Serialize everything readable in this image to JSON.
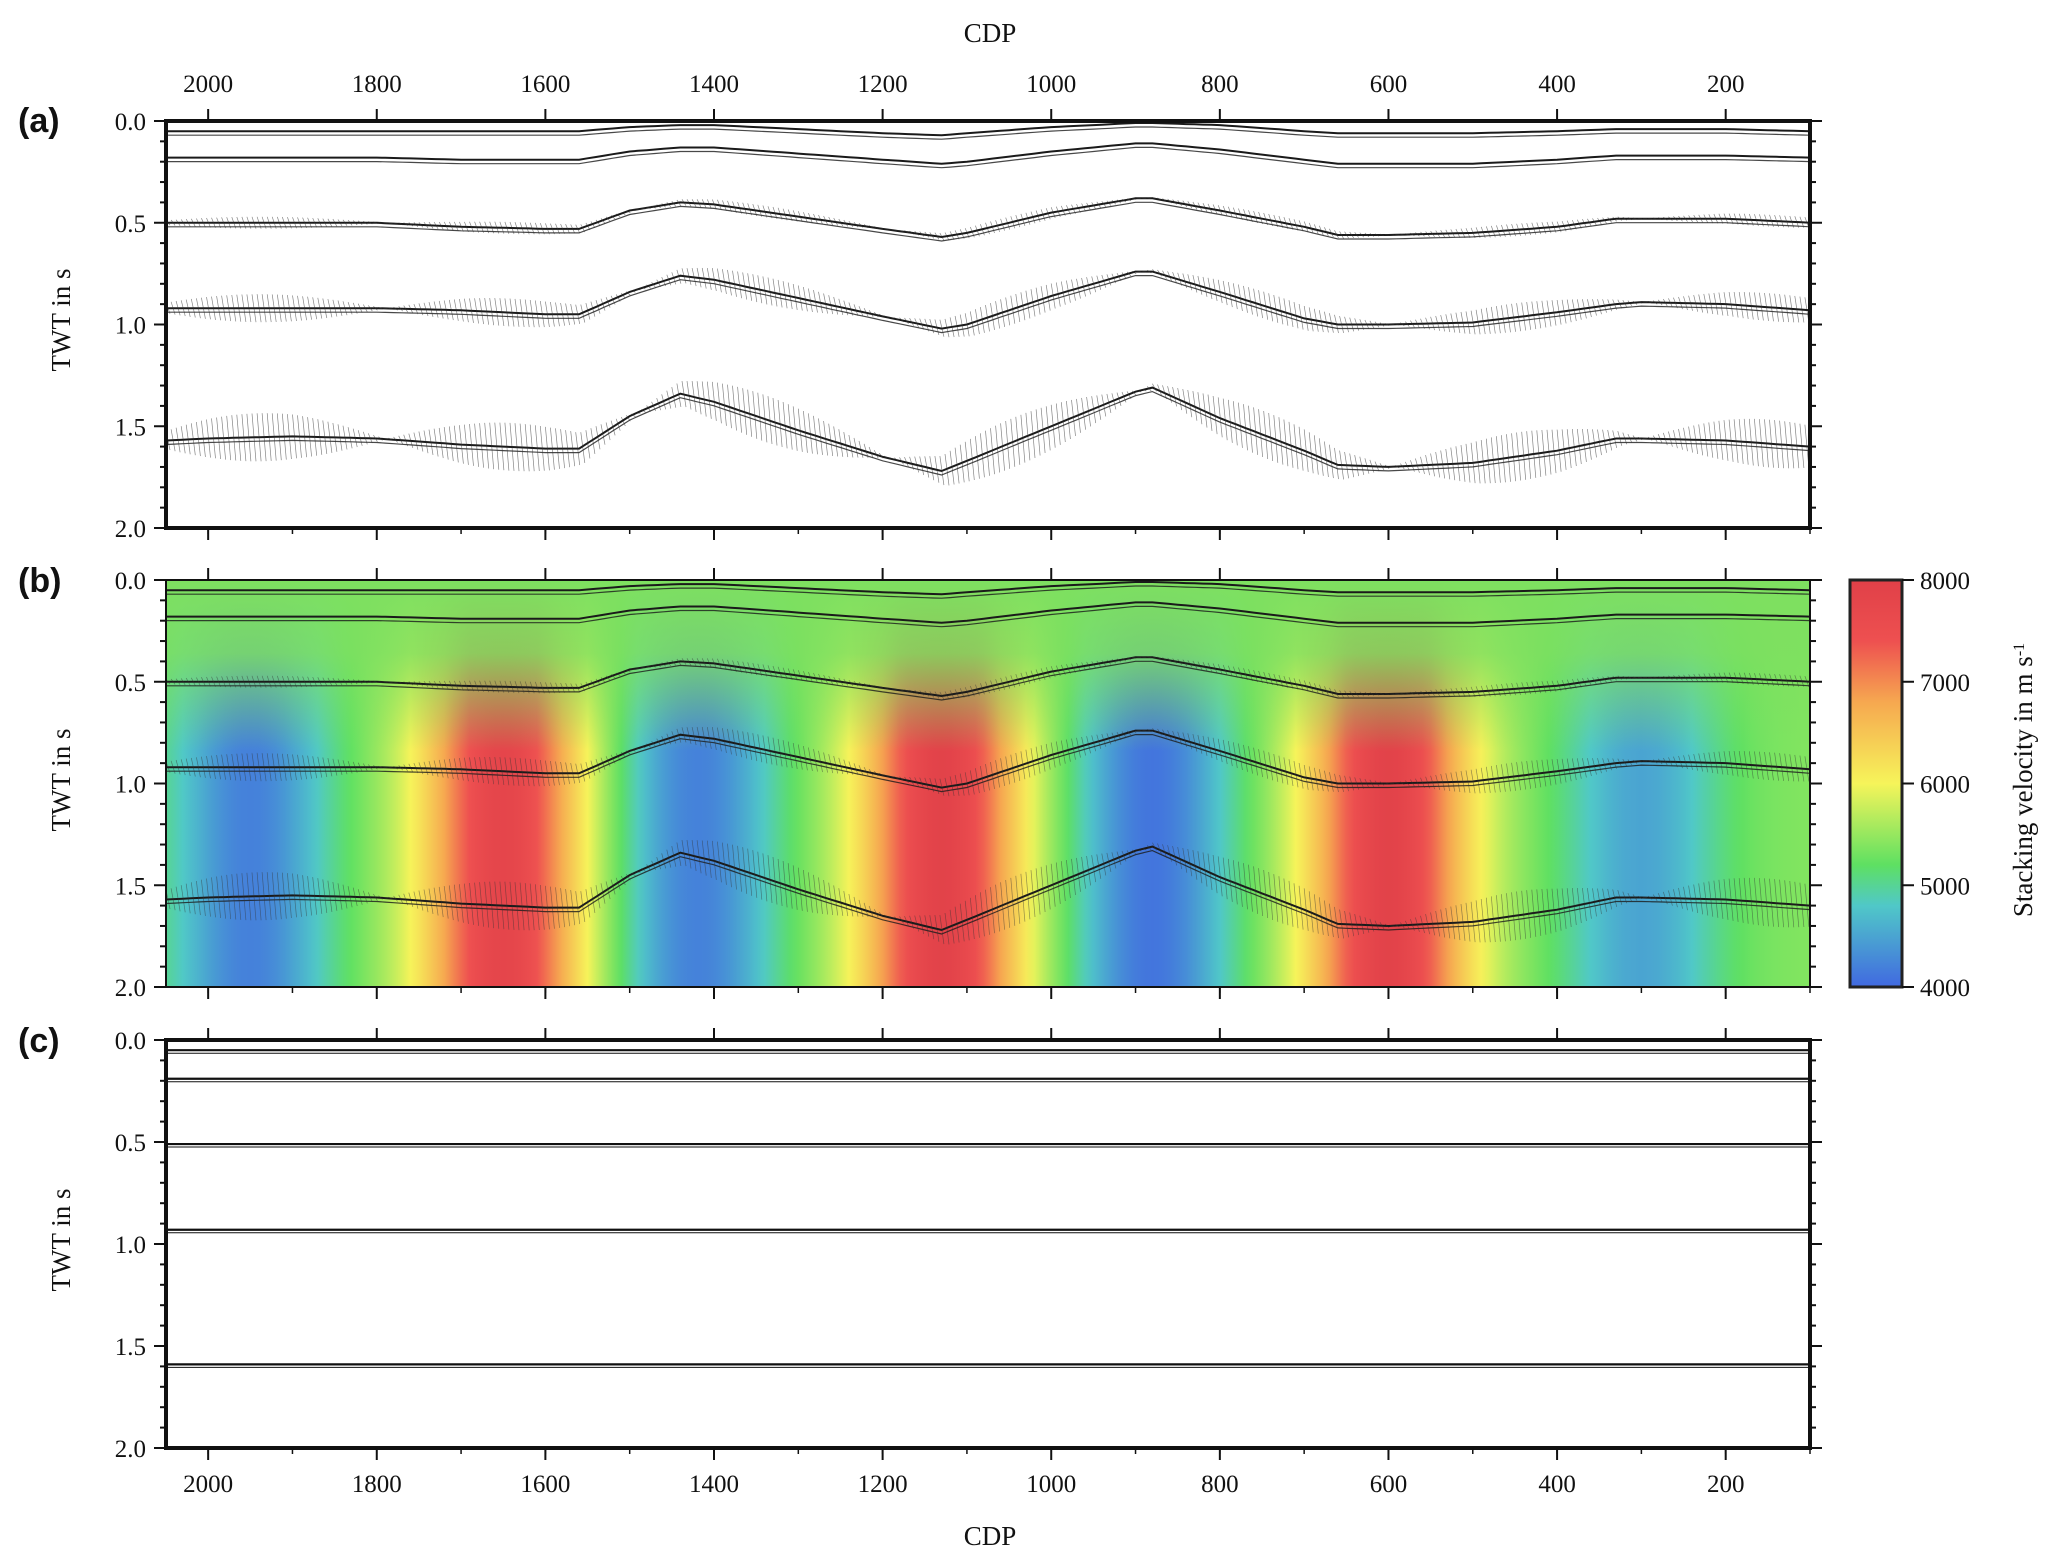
{
  "chart_data": [
    {
      "panel": "(a)",
      "type": "line",
      "x_axis": {
        "label": "CDP",
        "range": [
          2050,
          100
        ],
        "ticks": [
          2000,
          1800,
          1600,
          1400,
          1200,
          1000,
          800,
          600,
          400,
          200
        ]
      },
      "y_axis": {
        "label": "TWT in s",
        "range": [
          0,
          2
        ],
        "ticks": [
          0.0,
          0.5,
          1.0,
          1.5,
          2.0
        ],
        "inverted": true
      },
      "cdp_x": [
        2050,
        2000,
        1900,
        1800,
        1700,
        1600,
        1560,
        1500,
        1440,
        1400,
        1300,
        1200,
        1130,
        1100,
        1000,
        900,
        880,
        800,
        700,
        660,
        600,
        500,
        400,
        330,
        300,
        200,
        100
      ],
      "series": [
        {
          "values": [
            0.05,
            0.05,
            0.05,
            0.05,
            0.05,
            0.05,
            0.05,
            0.03,
            0.02,
            0.02,
            0.04,
            0.06,
            0.07,
            0.06,
            0.03,
            0.01,
            0.01,
            0.02,
            0.05,
            0.06,
            0.06,
            0.06,
            0.05,
            0.04,
            0.04,
            0.04,
            0.05
          ]
        },
        {
          "values": [
            0.18,
            0.18,
            0.18,
            0.18,
            0.19,
            0.19,
            0.19,
            0.15,
            0.13,
            0.13,
            0.16,
            0.19,
            0.21,
            0.2,
            0.15,
            0.11,
            0.11,
            0.14,
            0.19,
            0.21,
            0.21,
            0.21,
            0.19,
            0.17,
            0.17,
            0.17,
            0.18
          ]
        },
        {
          "values": [
            0.5,
            0.5,
            0.5,
            0.5,
            0.52,
            0.53,
            0.53,
            0.44,
            0.4,
            0.41,
            0.47,
            0.53,
            0.57,
            0.55,
            0.45,
            0.38,
            0.38,
            0.44,
            0.52,
            0.56,
            0.56,
            0.55,
            0.52,
            0.48,
            0.48,
            0.48,
            0.5
          ]
        },
        {
          "values": [
            0.92,
            0.92,
            0.92,
            0.92,
            0.93,
            0.95,
            0.95,
            0.84,
            0.76,
            0.78,
            0.87,
            0.96,
            1.02,
            1.0,
            0.86,
            0.74,
            0.74,
            0.84,
            0.97,
            1.0,
            1.0,
            0.99,
            0.94,
            0.9,
            0.89,
            0.9,
            0.93
          ]
        },
        {
          "values": [
            1.57,
            1.56,
            1.55,
            1.56,
            1.59,
            1.61,
            1.61,
            1.45,
            1.34,
            1.38,
            1.52,
            1.65,
            1.72,
            1.67,
            1.5,
            1.33,
            1.31,
            1.46,
            1.62,
            1.69,
            1.7,
            1.68,
            1.62,
            1.56,
            1.56,
            1.57,
            1.6
          ]
        }
      ]
    },
    {
      "panel": "(b)",
      "type": "heatmap",
      "x_axis": {
        "label": "",
        "range": [
          2050,
          100
        ],
        "ticks": [
          2000,
          1800,
          1600,
          1400,
          1200,
          1000,
          800,
          600,
          400,
          200
        ]
      },
      "y_axis": {
        "label": "TWT in s",
        "range": [
          0,
          2
        ],
        "ticks": [
          0.0,
          0.5,
          1.0,
          1.5,
          2.0
        ],
        "inverted": true
      },
      "colorbar": {
        "label": "Stacking velocity in m s⁻¹",
        "range": [
          4000,
          8000
        ],
        "ticks": [
          4000,
          5000,
          6000,
          7000,
          8000
        ],
        "colors": [
          "#4169e0",
          "#50c8c8",
          "#5ee062",
          "#f6f45a",
          "#f6a850",
          "#ee5050",
          "#e04048"
        ]
      },
      "velocity_extremes": [
        {
          "cdp": 1950,
          "velocity": 4200,
          "kind": "low"
        },
        {
          "cdp": 1650,
          "velocity": 7800,
          "kind": "high"
        },
        {
          "cdp": 1420,
          "velocity": 4200,
          "kind": "low"
        },
        {
          "cdp": 1130,
          "velocity": 7900,
          "kind": "high"
        },
        {
          "cdp": 880,
          "velocity": 4100,
          "kind": "low"
        },
        {
          "cdp": 600,
          "velocity": 7900,
          "kind": "high"
        },
        {
          "cdp": 300,
          "velocity": 4500,
          "kind": "low"
        }
      ],
      "overlay": "same horizons as panel (a)"
    },
    {
      "panel": "(c)",
      "type": "line",
      "x_axis": {
        "label": "CDP",
        "range": [
          2050,
          100
        ],
        "ticks": [
          2000,
          1800,
          1600,
          1400,
          1200,
          1000,
          800,
          600,
          400,
          200
        ]
      },
      "y_axis": {
        "label": "TWT in s",
        "range": [
          0,
          2
        ],
        "ticks": [
          0.0,
          0.5,
          1.0,
          1.5,
          2.0
        ],
        "inverted": true
      },
      "series": [
        {
          "values_flat": 0.05
        },
        {
          "values_flat": 0.19
        },
        {
          "values_flat": 0.51
        },
        {
          "values_flat": 0.93
        },
        {
          "values_flat": 1.59
        }
      ]
    }
  ],
  "labels": {
    "top_axis_title": "CDP",
    "bottom_axis_title": "CDP",
    "panel_a": "(a)",
    "panel_b": "(b)",
    "panel_c": "(c)",
    "ylabel": "TWT in s",
    "colorbar_label": "Stacking velocity in m s",
    "colorbar_label_sup": "-1"
  }
}
